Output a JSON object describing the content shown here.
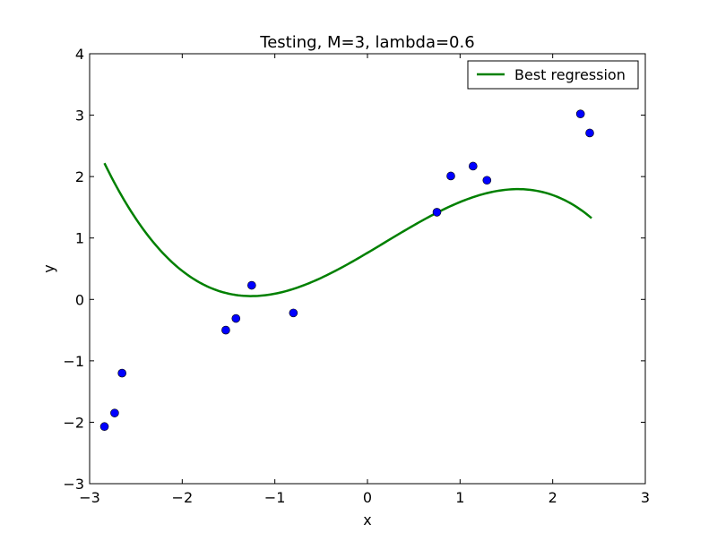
{
  "chart_data": {
    "type": "scatter",
    "title": "Testing, M=3, lambda=0.6",
    "xlabel": "x",
    "ylabel": "y",
    "xlim": [
      -3,
      3
    ],
    "ylim": [
      -3,
      4
    ],
    "xticks": [
      -3,
      -2,
      -1,
      0,
      1,
      2,
      3
    ],
    "yticks": [
      -3,
      -2,
      -1,
      0,
      1,
      2,
      3,
      4
    ],
    "xtick_labels": [
      "−3",
      "−2",
      "−1",
      "0",
      "1",
      "2",
      "3"
    ],
    "ytick_labels": [
      "−3",
      "−2",
      "−1",
      "0",
      "1",
      "2",
      "3",
      "4"
    ],
    "grid": false,
    "legend_position": "top-right",
    "series": [
      {
        "type": "scatter",
        "color": "#0000ff",
        "x": [
          -2.84,
          -2.73,
          -2.65,
          -1.53,
          -1.42,
          -1.25,
          -0.8,
          0.75,
          0.9,
          1.14,
          1.29,
          2.3,
          2.4
        ],
        "y": [
          -2.07,
          -1.85,
          -1.2,
          -0.5,
          -0.31,
          0.23,
          -0.22,
          1.42,
          2.01,
          2.17,
          1.94,
          3.02,
          2.71
        ]
      },
      {
        "type": "line",
        "name": "Best regression",
        "color": "#008000",
        "polynomial_coefficients": [
          0.7584,
          0.8923,
          0.0808,
          -0.1459
        ],
        "x_range": [
          -2.84,
          2.42
        ]
      }
    ]
  }
}
